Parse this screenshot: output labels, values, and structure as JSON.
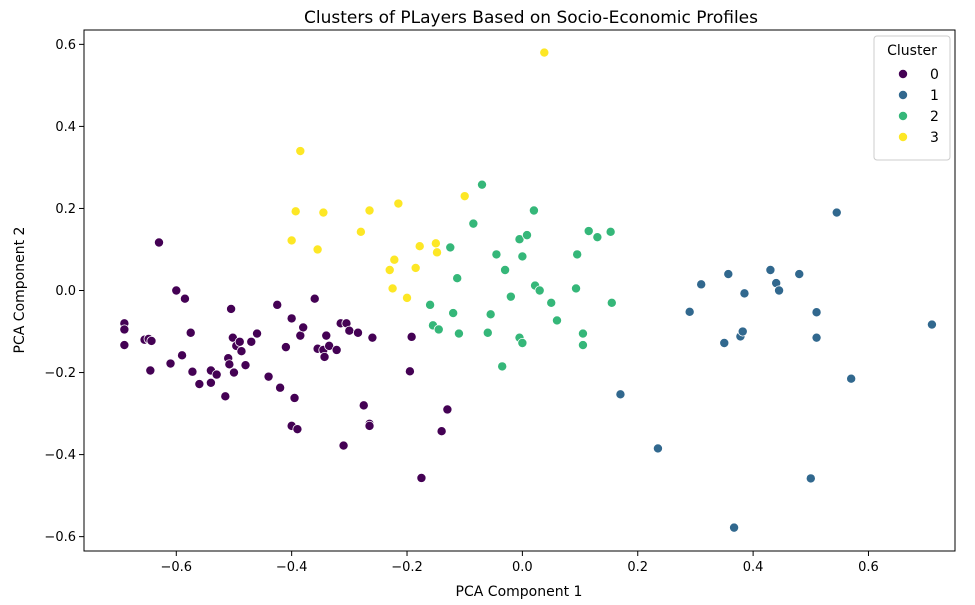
{
  "chart_data": {
    "type": "scatter",
    "title": "Clusters of PLayers Based on Socio-Economic Profiles",
    "xlabel": "PCA Component 1",
    "ylabel": "PCA Component 2",
    "xlim": [
      -0.76,
      0.75
    ],
    "ylim": [
      -0.635,
      0.635
    ],
    "x_ticks": [
      -0.6,
      -0.4,
      -0.2,
      0.0,
      0.2,
      0.4,
      0.6
    ],
    "x_tick_labels": [
      "−0.6",
      "−0.4",
      "−0.2",
      "0.0",
      "0.2",
      "0.4",
      "0.6"
    ],
    "y_ticks": [
      -0.6,
      -0.4,
      -0.2,
      0.0,
      0.2,
      0.4,
      0.6
    ],
    "y_tick_labels": [
      "−0.6",
      "−0.4",
      "−0.2",
      "0.0",
      "0.2",
      "0.4",
      "0.6"
    ],
    "grid": false,
    "legend": {
      "title": "Cluster",
      "placement": "top-right"
    },
    "series": [
      {
        "name": "0",
        "color": "#440154",
        "points": [
          [
            -0.69,
            -0.08
          ],
          [
            -0.69,
            -0.095
          ],
          [
            -0.69,
            -0.133
          ],
          [
            -0.655,
            -0.12
          ],
          [
            -0.648,
            -0.118
          ],
          [
            -0.643,
            -0.123
          ],
          [
            -0.645,
            -0.195
          ],
          [
            -0.63,
            0.117
          ],
          [
            -0.61,
            -0.178
          ],
          [
            -0.59,
            -0.158
          ],
          [
            -0.585,
            -0.02
          ],
          [
            -0.575,
            -0.103
          ],
          [
            -0.572,
            -0.198
          ],
          [
            -0.56,
            -0.228
          ],
          [
            -0.54,
            -0.195
          ],
          [
            -0.54,
            -0.225
          ],
          [
            -0.53,
            -0.205
          ],
          [
            -0.515,
            -0.258
          ],
          [
            -0.51,
            -0.165
          ],
          [
            -0.508,
            -0.18
          ],
          [
            -0.505,
            -0.045
          ],
          [
            -0.502,
            -0.115
          ],
          [
            -0.5,
            -0.2
          ],
          [
            -0.496,
            -0.135
          ],
          [
            -0.49,
            -0.125
          ],
          [
            -0.487,
            -0.148
          ],
          [
            -0.48,
            -0.182
          ],
          [
            -0.47,
            -0.125
          ],
          [
            -0.46,
            -0.105
          ],
          [
            -0.44,
            -0.21
          ],
          [
            -0.425,
            -0.035
          ],
          [
            -0.42,
            -0.237
          ],
          [
            -0.41,
            -0.138
          ],
          [
            -0.4,
            -0.068
          ],
          [
            -0.4,
            -0.33
          ],
          [
            -0.395,
            -0.262
          ],
          [
            -0.39,
            -0.338
          ],
          [
            -0.385,
            -0.11
          ],
          [
            -0.38,
            -0.09
          ],
          [
            -0.36,
            -0.02
          ],
          [
            -0.355,
            -0.142
          ],
          [
            -0.345,
            -0.145
          ],
          [
            -0.343,
            -0.162
          ],
          [
            -0.34,
            -0.11
          ],
          [
            -0.335,
            -0.135
          ],
          [
            -0.322,
            -0.145
          ],
          [
            -0.315,
            -0.08
          ],
          [
            -0.31,
            -0.378
          ],
          [
            -0.305,
            -0.08
          ],
          [
            -0.3,
            -0.098
          ],
          [
            -0.285,
            -0.103
          ],
          [
            -0.275,
            -0.28
          ],
          [
            -0.265,
            -0.325
          ],
          [
            -0.265,
            -0.33
          ],
          [
            -0.26,
            -0.115
          ],
          [
            -0.195,
            -0.197
          ],
          [
            -0.192,
            -0.113
          ],
          [
            -0.175,
            -0.457
          ],
          [
            -0.14,
            -0.343
          ],
          [
            -0.13,
            -0.29
          ],
          [
            -0.6,
            0.0
          ]
        ]
      },
      {
        "name": "1",
        "color": "#31688e",
        "points": [
          [
            0.17,
            -0.253
          ],
          [
            0.235,
            -0.385
          ],
          [
            0.29,
            -0.052
          ],
          [
            0.31,
            0.015
          ],
          [
            0.35,
            -0.128
          ],
          [
            0.357,
            0.04
          ],
          [
            0.367,
            -0.578
          ],
          [
            0.378,
            -0.112
          ],
          [
            0.382,
            -0.1
          ],
          [
            0.385,
            -0.007
          ],
          [
            0.43,
            0.05
          ],
          [
            0.44,
            0.018
          ],
          [
            0.445,
            0.0
          ],
          [
            0.48,
            0.04
          ],
          [
            0.5,
            -0.458
          ],
          [
            0.51,
            -0.053
          ],
          [
            0.51,
            -0.115
          ],
          [
            0.545,
            0.19
          ],
          [
            0.57,
            -0.215
          ],
          [
            0.71,
            -0.083
          ]
        ]
      },
      {
        "name": "2",
        "color": "#35b779",
        "points": [
          [
            -0.16,
            -0.035
          ],
          [
            -0.155,
            -0.085
          ],
          [
            -0.145,
            -0.095
          ],
          [
            -0.125,
            0.105
          ],
          [
            -0.12,
            -0.055
          ],
          [
            -0.113,
            0.03
          ],
          [
            -0.11,
            -0.105
          ],
          [
            -0.085,
            0.163
          ],
          [
            -0.07,
            0.258
          ],
          [
            -0.06,
            -0.103
          ],
          [
            -0.055,
            -0.058
          ],
          [
            -0.045,
            0.088
          ],
          [
            -0.035,
            -0.185
          ],
          [
            -0.03,
            0.05
          ],
          [
            -0.02,
            -0.015
          ],
          [
            -0.005,
            0.125
          ],
          [
            -0.005,
            -0.115
          ],
          [
            0.0,
            -0.128
          ],
          [
            0.0,
            0.083
          ],
          [
            0.008,
            0.135
          ],
          [
            0.02,
            0.195
          ],
          [
            0.022,
            0.012
          ],
          [
            0.03,
            0.0
          ],
          [
            0.05,
            -0.03
          ],
          [
            0.06,
            -0.073
          ],
          [
            0.093,
            0.005
          ],
          [
            0.105,
            -0.105
          ],
          [
            0.105,
            -0.133
          ],
          [
            0.115,
            0.145
          ],
          [
            0.13,
            0.13
          ],
          [
            0.153,
            0.143
          ],
          [
            0.155,
            -0.03
          ],
          [
            0.095,
            0.088
          ]
        ]
      },
      {
        "name": "3",
        "color": "#fde725",
        "points": [
          [
            -0.385,
            0.34
          ],
          [
            -0.4,
            0.122
          ],
          [
            -0.393,
            0.193
          ],
          [
            -0.355,
            0.1
          ],
          [
            -0.345,
            0.19
          ],
          [
            -0.28,
            0.143
          ],
          [
            -0.265,
            0.195
          ],
          [
            -0.23,
            0.05
          ],
          [
            -0.225,
            0.005
          ],
          [
            -0.222,
            0.075
          ],
          [
            -0.215,
            0.212
          ],
          [
            -0.2,
            -0.018
          ],
          [
            -0.185,
            0.055
          ],
          [
            -0.178,
            0.108
          ],
          [
            -0.15,
            0.115
          ],
          [
            -0.148,
            0.093
          ],
          [
            -0.1,
            0.23
          ],
          [
            0.038,
            0.58
          ]
        ]
      }
    ]
  }
}
